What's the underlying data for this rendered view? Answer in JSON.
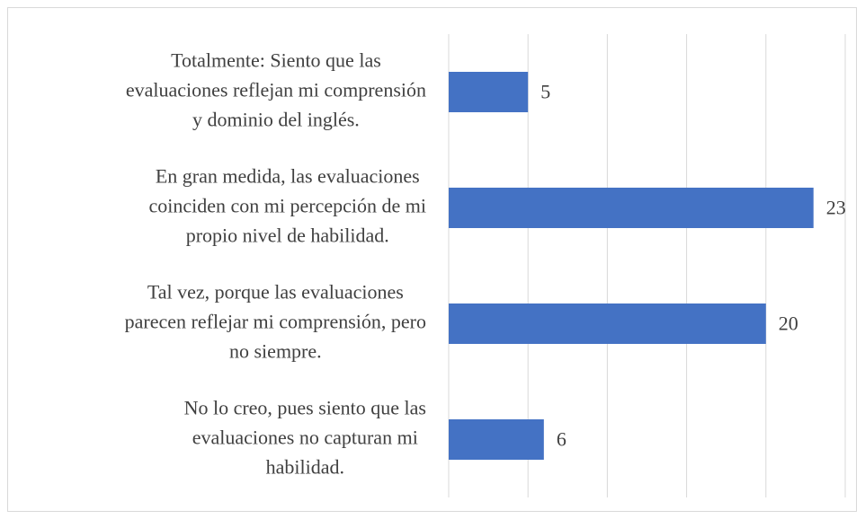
{
  "chart_data": {
    "type": "barh",
    "categories": [
      "Totalmente: Siento que las\nevaluaciones reflejan mi comprensión\ny dominio del inglés.",
      "En gran medida, las evaluaciones\ncoinciden con mi percepción de mi\npropio nivel de habilidad.",
      "Tal vez, porque las evaluaciones\nparecen reflejar mi comprensión, pero\nno siempre.",
      "No lo creo, pues siento que las\nevaluaciones no capturan mi\nhabilidad."
    ],
    "values": [
      5,
      23,
      20,
      6
    ],
    "color": "#4472c4",
    "xlim": [
      0,
      25
    ],
    "xticks": [
      0,
      5,
      10,
      15,
      20,
      25
    ],
    "grid": true
  }
}
